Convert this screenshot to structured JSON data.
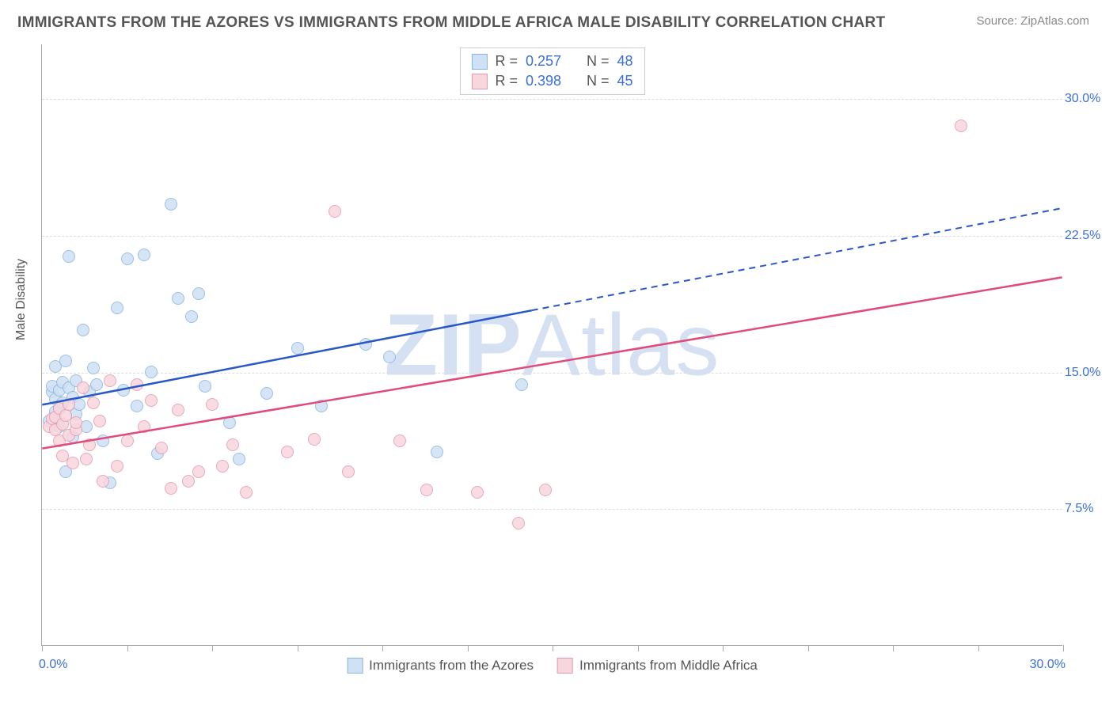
{
  "title": "IMMIGRANTS FROM THE AZORES VS IMMIGRANTS FROM MIDDLE AFRICA MALE DISABILITY CORRELATION CHART",
  "source": "Source: ZipAtlas.com",
  "y_axis_title": "Male Disability",
  "watermark_bold": "ZIP",
  "watermark_rest": "Atlas",
  "chart": {
    "type": "scatter",
    "xlim": [
      0,
      30
    ],
    "ylim": [
      0,
      33
    ],
    "x_tick_positions": [
      0,
      2.5,
      5,
      7.5,
      10,
      12.5,
      15,
      17.5,
      20,
      22.5,
      25,
      27.5,
      30
    ],
    "x_label_min": "0.0%",
    "x_label_max": "30.0%",
    "y_gridlines": [
      7.5,
      15.0,
      22.5,
      30.0
    ],
    "y_tick_labels": [
      "7.5%",
      "15.0%",
      "22.5%",
      "30.0%"
    ],
    "background_color": "#ffffff",
    "grid_color": "#dddddd",
    "axis_color": "#aaaaaa",
    "series": [
      {
        "name": "Immigrants from the Azores",
        "short": "azores",
        "fill": "#cfe1f5",
        "stroke": "#8bb5e0",
        "line_color": "#2857c9",
        "R": "0.257",
        "N": "48",
        "trend": {
          "x1": 0,
          "y1": 13.2,
          "x2": 30,
          "y2": 24.0,
          "solid_until_x": 14.4
        },
        "points": [
          [
            0.2,
            12.3
          ],
          [
            0.3,
            13.9
          ],
          [
            0.3,
            14.2
          ],
          [
            0.4,
            12.8
          ],
          [
            0.4,
            13.5
          ],
          [
            0.4,
            15.3
          ],
          [
            0.5,
            14.0
          ],
          [
            0.5,
            13.0
          ],
          [
            0.5,
            12.0
          ],
          [
            0.6,
            14.4
          ],
          [
            0.6,
            13.3
          ],
          [
            0.7,
            15.6
          ],
          [
            0.7,
            9.5
          ],
          [
            0.8,
            21.3
          ],
          [
            0.8,
            14.1
          ],
          [
            0.9,
            13.6
          ],
          [
            0.9,
            11.4
          ],
          [
            1.0,
            12.7
          ],
          [
            1.0,
            14.5
          ],
          [
            1.1,
            13.2
          ],
          [
            1.2,
            17.3
          ],
          [
            1.3,
            12.0
          ],
          [
            1.4,
            13.9
          ],
          [
            1.5,
            15.2
          ],
          [
            1.6,
            14.3
          ],
          [
            1.8,
            11.2
          ],
          [
            2.0,
            8.9
          ],
          [
            2.2,
            18.5
          ],
          [
            2.4,
            14.0
          ],
          [
            2.5,
            21.2
          ],
          [
            2.8,
            13.1
          ],
          [
            3.0,
            21.4
          ],
          [
            3.2,
            15.0
          ],
          [
            3.4,
            10.5
          ],
          [
            3.8,
            24.2
          ],
          [
            4.0,
            19.0
          ],
          [
            4.4,
            18.0
          ],
          [
            4.6,
            19.3
          ],
          [
            4.8,
            14.2
          ],
          [
            5.5,
            12.2
          ],
          [
            5.8,
            10.2
          ],
          [
            6.6,
            13.8
          ],
          [
            7.5,
            16.3
          ],
          [
            8.2,
            13.1
          ],
          [
            9.5,
            16.5
          ],
          [
            10.2,
            15.8
          ],
          [
            11.6,
            10.6
          ],
          [
            14.1,
            14.3
          ]
        ]
      },
      {
        "name": "Immigrants from Middle Africa",
        "short": "middle_africa",
        "fill": "#f7d6de",
        "stroke": "#e59ab0",
        "line_color": "#e04b7b",
        "R": "0.398",
        "N": "45",
        "trend": {
          "x1": 0,
          "y1": 10.8,
          "x2": 30,
          "y2": 20.2,
          "solid_until_x": 30
        },
        "points": [
          [
            0.2,
            12.0
          ],
          [
            0.3,
            12.4
          ],
          [
            0.4,
            11.8
          ],
          [
            0.4,
            12.5
          ],
          [
            0.5,
            13.0
          ],
          [
            0.5,
            11.2
          ],
          [
            0.6,
            12.1
          ],
          [
            0.6,
            10.4
          ],
          [
            0.7,
            12.6
          ],
          [
            0.8,
            11.5
          ],
          [
            0.8,
            13.2
          ],
          [
            0.9,
            10.0
          ],
          [
            1.0,
            11.8
          ],
          [
            1.0,
            12.2
          ],
          [
            1.2,
            14.1
          ],
          [
            1.3,
            10.2
          ],
          [
            1.4,
            11.0
          ],
          [
            1.5,
            13.3
          ],
          [
            1.7,
            12.3
          ],
          [
            1.8,
            9.0
          ],
          [
            2.0,
            14.5
          ],
          [
            2.2,
            9.8
          ],
          [
            2.5,
            11.2
          ],
          [
            2.8,
            14.3
          ],
          [
            3.0,
            12.0
          ],
          [
            3.2,
            13.4
          ],
          [
            3.5,
            10.8
          ],
          [
            3.8,
            8.6
          ],
          [
            4.0,
            12.9
          ],
          [
            4.3,
            9.0
          ],
          [
            4.6,
            9.5
          ],
          [
            5.0,
            13.2
          ],
          [
            5.3,
            9.8
          ],
          [
            5.6,
            11.0
          ],
          [
            6.0,
            8.4
          ],
          [
            7.2,
            10.6
          ],
          [
            8.0,
            11.3
          ],
          [
            8.6,
            23.8
          ],
          [
            9.0,
            9.5
          ],
          [
            10.5,
            11.2
          ],
          [
            11.3,
            8.5
          ],
          [
            12.8,
            8.4
          ],
          [
            14.0,
            6.7
          ],
          [
            14.8,
            8.5
          ],
          [
            27.0,
            28.5
          ]
        ]
      }
    ],
    "legend_top": {
      "R_label": "R =",
      "N_label": "N ="
    }
  }
}
